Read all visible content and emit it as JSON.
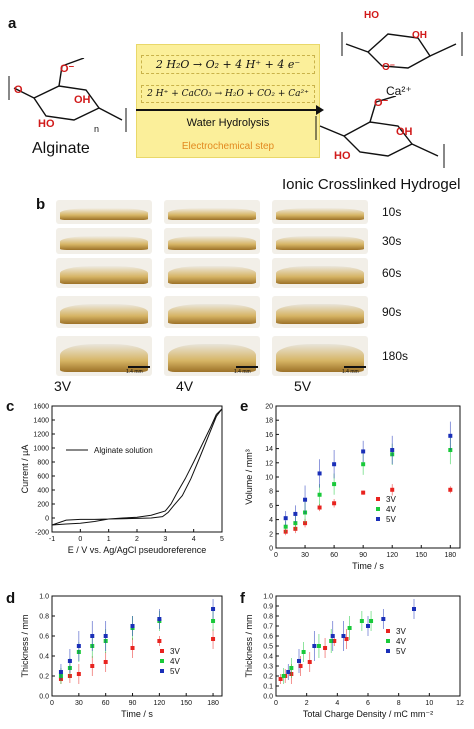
{
  "panels": {
    "a": "a",
    "b": "b",
    "c": "c",
    "d": "d",
    "e": "e",
    "f": "f"
  },
  "scheme": {
    "eq1": "2 H₂O → O₂ + 4 H⁺ + 4 e⁻",
    "eq2": "2 H⁺ + CaCO₃ → H₂O + CO₂ + Ca²⁺",
    "arrow_label": "Water Hydrolysis",
    "step_label": "Electrochemical step",
    "left_name": "Alginate",
    "right_name": "Ionic Crosslinked Hydrogel",
    "ion": "Ca²⁺",
    "atoms": {
      "oh": "OH",
      "ho": "HO",
      "o": "O",
      "o_minus": "O⁻",
      "n": "n"
    }
  },
  "photos": {
    "times": [
      "10s",
      "30s",
      "60s",
      "90s",
      "180s"
    ],
    "voltages": [
      "3V",
      "4V",
      "5V"
    ],
    "scale": "1.4 mm"
  },
  "colors": {
    "v3": "#e8231f",
    "v4": "#19c93a",
    "v5": "#1a2fb8",
    "scheme_bg": "#fbef9a",
    "step_text": "#e28a20",
    "acid_red": "#d11a1a"
  },
  "chart_data": [
    {
      "id": "c",
      "type": "line",
      "xlabel": "E / V vs. Ag/AgCl pseudoreference",
      "ylabel": "Current / µA",
      "xlim": [
        -1,
        5
      ],
      "ylim": [
        -200,
        1600
      ],
      "xticks": [
        -1,
        0,
        1,
        2,
        3,
        4,
        5
      ],
      "yticks": [
        -200,
        0,
        200,
        400,
        600,
        800,
        1000,
        1200,
        1400,
        1600
      ],
      "legend": "Alginate solution",
      "series": [
        {
          "name": "Alginate solution",
          "x": [
            -1,
            -0.5,
            0,
            0.5,
            1,
            1.5,
            2,
            2.5,
            2.9,
            3.1,
            3.3,
            3.6,
            3.9,
            4.2,
            4.5,
            4.8,
            5,
            5,
            4.8,
            4.6,
            4.3,
            4.0,
            3.7,
            3.4,
            3.2,
            3.0,
            2.5,
            2,
            1.5,
            1,
            0.5,
            0,
            -0.5,
            -1
          ],
          "y": [
            -100,
            -30,
            -20,
            -20,
            -15,
            -10,
            -5,
            0,
            20,
            80,
            180,
            320,
            560,
            850,
            1150,
            1450,
            1560,
            1560,
            1480,
            1300,
            1050,
            800,
            560,
            350,
            200,
            100,
            40,
            10,
            0,
            -15,
            -50,
            -75,
            -85,
            -100
          ]
        }
      ]
    },
    {
      "id": "e",
      "type": "scatter",
      "xlabel": "Time / s",
      "ylabel": "Volume / mm³",
      "xlim": [
        0,
        190
      ],
      "ylim": [
        0,
        20
      ],
      "xticks": [
        0,
        30,
        60,
        90,
        120,
        150,
        180
      ],
      "yticks": [
        0,
        2,
        4,
        6,
        8,
        10,
        12,
        14,
        16,
        18,
        20
      ],
      "legend": [
        "3V",
        "4V",
        "5V"
      ],
      "series": [
        {
          "name": "3V",
          "x": [
            10,
            20,
            30,
            45,
            60,
            90,
            120,
            180
          ],
          "y": [
            2.3,
            2.7,
            3.5,
            5.7,
            6.3,
            7.8,
            8.2,
            8.2
          ],
          "err": [
            0.5,
            0.6,
            0.6,
            0.5,
            0.6,
            0.3,
            0.8,
            0.5
          ]
        },
        {
          "name": "4V",
          "x": [
            10,
            20,
            30,
            45,
            60,
            90,
            120,
            180
          ],
          "y": [
            3.0,
            3.5,
            5.0,
            7.5,
            9.0,
            11.8,
            13.2,
            13.8
          ],
          "err": [
            0.8,
            1.0,
            1.5,
            1.5,
            1.5,
            1.5,
            1.5,
            2.0
          ]
        },
        {
          "name": "5V",
          "x": [
            10,
            20,
            30,
            45,
            60,
            90,
            120,
            180
          ],
          "y": [
            4.2,
            4.8,
            6.8,
            10.5,
            11.8,
            13.6,
            13.8,
            15.8
          ],
          "err": [
            1.0,
            1.2,
            2.0,
            2.0,
            2.0,
            1.5,
            2.0,
            2.0
          ]
        }
      ]
    },
    {
      "id": "d",
      "type": "scatter",
      "xlabel": "Time / s",
      "ylabel": "Thickness / mm",
      "xlim": [
        0,
        190
      ],
      "ylim": [
        0,
        1.0
      ],
      "xticks": [
        0,
        30,
        60,
        90,
        120,
        150,
        180
      ],
      "yticks": [
        0.0,
        0.2,
        0.4,
        0.6,
        0.8,
        1.0
      ],
      "legend": [
        "3V",
        "4V",
        "5V"
      ],
      "series": [
        {
          "name": "3V",
          "x": [
            10,
            20,
            30,
            45,
            60,
            90,
            120,
            180
          ],
          "y": [
            0.17,
            0.2,
            0.22,
            0.3,
            0.34,
            0.48,
            0.55,
            0.57
          ],
          "err": [
            0.05,
            0.07,
            0.1,
            0.1,
            0.1,
            0.1,
            0.05,
            0.1
          ]
        },
        {
          "name": "4V",
          "x": [
            10,
            20,
            30,
            45,
            60,
            90,
            120,
            180
          ],
          "y": [
            0.2,
            0.28,
            0.44,
            0.5,
            0.55,
            0.68,
            0.75,
            0.75
          ],
          "err": [
            0.08,
            0.1,
            0.1,
            0.12,
            0.12,
            0.12,
            0.1,
            0.1
          ]
        },
        {
          "name": "5V",
          "x": [
            10,
            20,
            30,
            45,
            60,
            90,
            120,
            180
          ],
          "y": [
            0.24,
            0.35,
            0.5,
            0.6,
            0.6,
            0.7,
            0.77,
            0.87
          ],
          "err": [
            0.08,
            0.12,
            0.15,
            0.15,
            0.15,
            0.1,
            0.1,
            0.1
          ]
        }
      ]
    },
    {
      "id": "f",
      "type": "scatter",
      "xlabel": "Total Charge Density / mC mm⁻²",
      "ylabel": "Thickness / mm",
      "xlim": [
        0,
        12
      ],
      "ylim": [
        0,
        1.0
      ],
      "xticks": [
        0,
        2,
        4,
        6,
        8,
        10,
        12
      ],
      "yticks": [
        0.0,
        0.1,
        0.2,
        0.3,
        0.4,
        0.5,
        0.6,
        0.7,
        0.8,
        0.9,
        1.0
      ],
      "legend": [
        "3V",
        "4V",
        "5V"
      ],
      "series": [
        {
          "name": "3V",
          "x": [
            0.3,
            0.6,
            1.0,
            1.6,
            2.2,
            3.2,
            3.8,
            4.6
          ],
          "y": [
            0.17,
            0.2,
            0.22,
            0.3,
            0.34,
            0.48,
            0.55,
            0.57
          ],
          "err": [
            0.05,
            0.07,
            0.1,
            0.1,
            0.1,
            0.1,
            0.05,
            0.1
          ]
        },
        {
          "name": "4V",
          "x": [
            0.5,
            1.0,
            1.8,
            2.8,
            3.6,
            4.8,
            5.6,
            6.2
          ],
          "y": [
            0.2,
            0.28,
            0.44,
            0.5,
            0.55,
            0.68,
            0.75,
            0.75
          ],
          "err": [
            0.08,
            0.1,
            0.1,
            0.12,
            0.12,
            0.12,
            0.1,
            0.1
          ]
        },
        {
          "name": "5V",
          "x": [
            0.8,
            1.5,
            2.5,
            3.7,
            4.4,
            6.0,
            7.0,
            9.0
          ],
          "y": [
            0.24,
            0.35,
            0.5,
            0.6,
            0.6,
            0.7,
            0.77,
            0.87
          ],
          "err": [
            0.08,
            0.12,
            0.15,
            0.15,
            0.15,
            0.1,
            0.1,
            0.1
          ]
        }
      ]
    }
  ]
}
